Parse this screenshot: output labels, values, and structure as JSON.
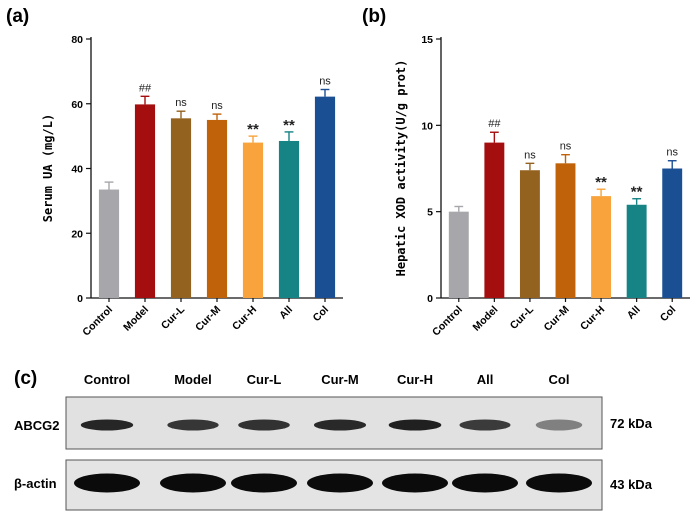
{
  "chart_data": [
    {
      "panel_label": "(a)",
      "type": "bar",
      "ylabel": "Serum UA (mg/L)",
      "ylim": [
        0,
        80
      ],
      "yticks": [
        0,
        20,
        40,
        60,
        80
      ],
      "categories": [
        "Control",
        "Model",
        "Cur-L",
        "Cur-M",
        "Cur-H",
        "All",
        "Col"
      ],
      "values": [
        33.5,
        59.8,
        55.5,
        55.0,
        48.0,
        48.5,
        62.2
      ],
      "errors": [
        2.3,
        2.5,
        2.2,
        1.8,
        2.0,
        2.8,
        2.2
      ],
      "annotations": [
        "",
        "##",
        "ns",
        "ns",
        "**",
        "**",
        "ns"
      ],
      "colors": [
        "#a6a6ab",
        "#a50e0e",
        "#94621f",
        "#c0620a",
        "#f8a33c",
        "#168384",
        "#1a4f94"
      ]
    },
    {
      "panel_label": "(b)",
      "type": "bar",
      "ylabel": "Hepatic XOD activity(U/g prot)",
      "ylim": [
        0,
        15
      ],
      "yticks": [
        0,
        5,
        10,
        15
      ],
      "categories": [
        "Control",
        "Model",
        "Cur-L",
        "Cur-M",
        "Cur-H",
        "All",
        "Col"
      ],
      "values": [
        5.0,
        9.0,
        7.4,
        7.8,
        5.9,
        5.4,
        7.5
      ],
      "errors": [
        0.3,
        0.6,
        0.4,
        0.5,
        0.4,
        0.35,
        0.45
      ],
      "annotations": [
        "",
        "##",
        "ns",
        "ns",
        "**",
        "**",
        "ns"
      ],
      "colors": [
        "#a6a6ab",
        "#a50e0e",
        "#94621f",
        "#c0620a",
        "#f8a33c",
        "#168384",
        "#1a4f94"
      ]
    }
  ],
  "blot": {
    "panel_label": "(c)",
    "lanes": [
      "Control",
      "Model",
      "Cur-L",
      "Cur-M",
      "Cur-H",
      "All",
      "Col"
    ],
    "rows": [
      {
        "label": "ABCG2",
        "size": "72 kDa",
        "intensity": [
          0.88,
          0.8,
          0.82,
          0.86,
          0.9,
          0.78,
          0.45
        ]
      },
      {
        "label": "β-actin",
        "size": "43 kDa",
        "intensity": [
          1,
          1,
          1,
          1,
          1,
          1,
          1
        ]
      }
    ]
  }
}
